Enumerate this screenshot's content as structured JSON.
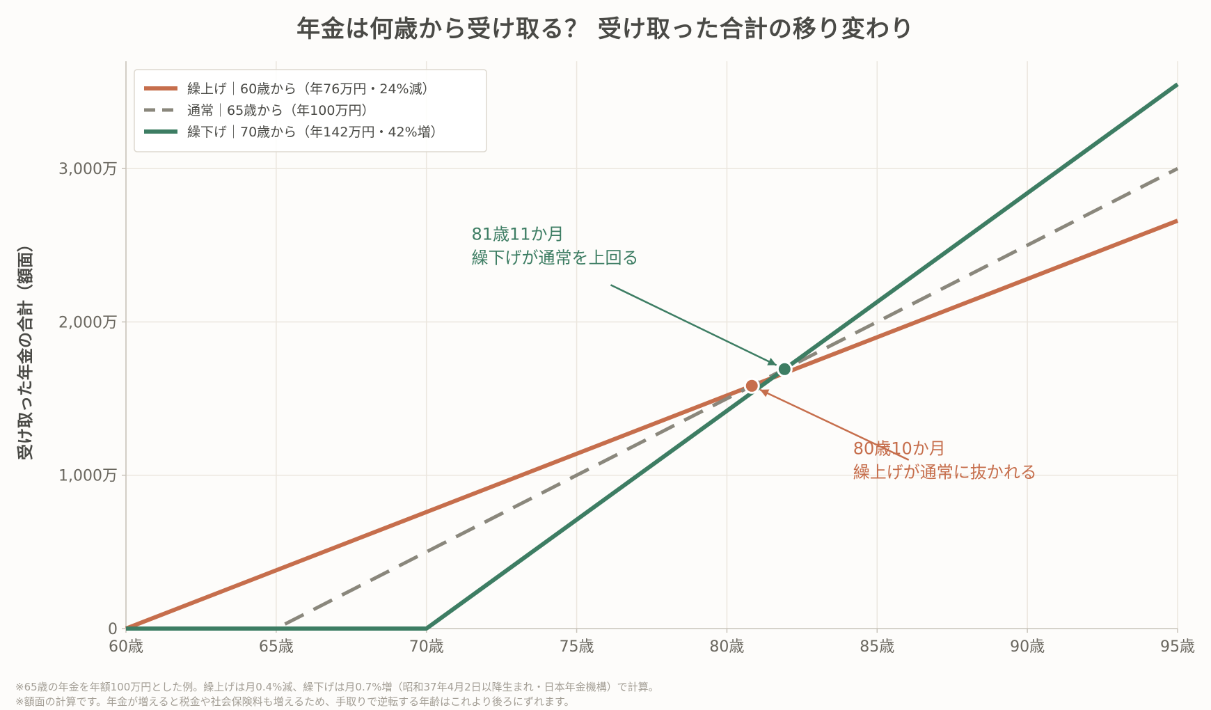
{
  "chart_data": {
    "type": "line",
    "title": "年金は何歳から受け取る？ 受け取った合計の移り変わり",
    "ylabel": "受け取った年金の合計（額面）",
    "xlabel": "",
    "xlim": [
      60,
      95
    ],
    "ylim": [
      0,
      3700
    ],
    "x_ticks": [
      60,
      65,
      70,
      75,
      80,
      85,
      90,
      95
    ],
    "x_tick_labels": [
      "60歳",
      "65歳",
      "70歳",
      "75歳",
      "80歳",
      "85歳",
      "90歳",
      "95歳"
    ],
    "y_ticks": [
      0,
      1000,
      2000,
      3000
    ],
    "y_tick_labels": [
      "0",
      "1,000万",
      "2,000万",
      "3,000万"
    ],
    "grid": true,
    "legend_position": "top-left",
    "series": [
      {
        "name": "繰上げ｜60歳から（年76万円・24%減）",
        "color": "#c66e4c",
        "style": "solid",
        "x": [
          60,
          95
        ],
        "y": [
          0,
          2660
        ]
      },
      {
        "name": "通常｜65歳から（年100万円）",
        "color": "#8a877c",
        "style": "dashed",
        "x": [
          60,
          65,
          95
        ],
        "y": [
          0,
          0,
          3000
        ]
      },
      {
        "name": "繰下げ｜70歳から（年142万円・42%増）",
        "color": "#3d7d63",
        "style": "solid",
        "x": [
          60,
          70,
          95
        ],
        "y": [
          0,
          0,
          3550
        ]
      }
    ],
    "annotations": [
      {
        "id": "kuriage",
        "line1": "80歳10か月",
        "line2": "繰上げが通常に抜かれる",
        "point": [
          80.83,
          1583
        ],
        "text_at": [
          84.2,
          1000
        ],
        "color": "#c66e4c"
      },
      {
        "id": "kurisage",
        "line1": "81歳11か月",
        "line2": "繰下げが通常を上回る",
        "point": [
          81.92,
          1692
        ],
        "text_at": [
          71.5,
          2400
        ],
        "color": "#3d7d63"
      }
    ]
  },
  "footnotes": {
    "line1": "※65歳の年金を年額100万円とした例。繰上げは月0.4%減、繰下げは月0.7%増（昭和37年4月2日以降生まれ・日本年金機構）で計算。",
    "line2": "※額面の計算です。年金が増えると税金や社会保険料も増えるため、手取りで逆転する年齢はこれより後ろにずれます。"
  }
}
